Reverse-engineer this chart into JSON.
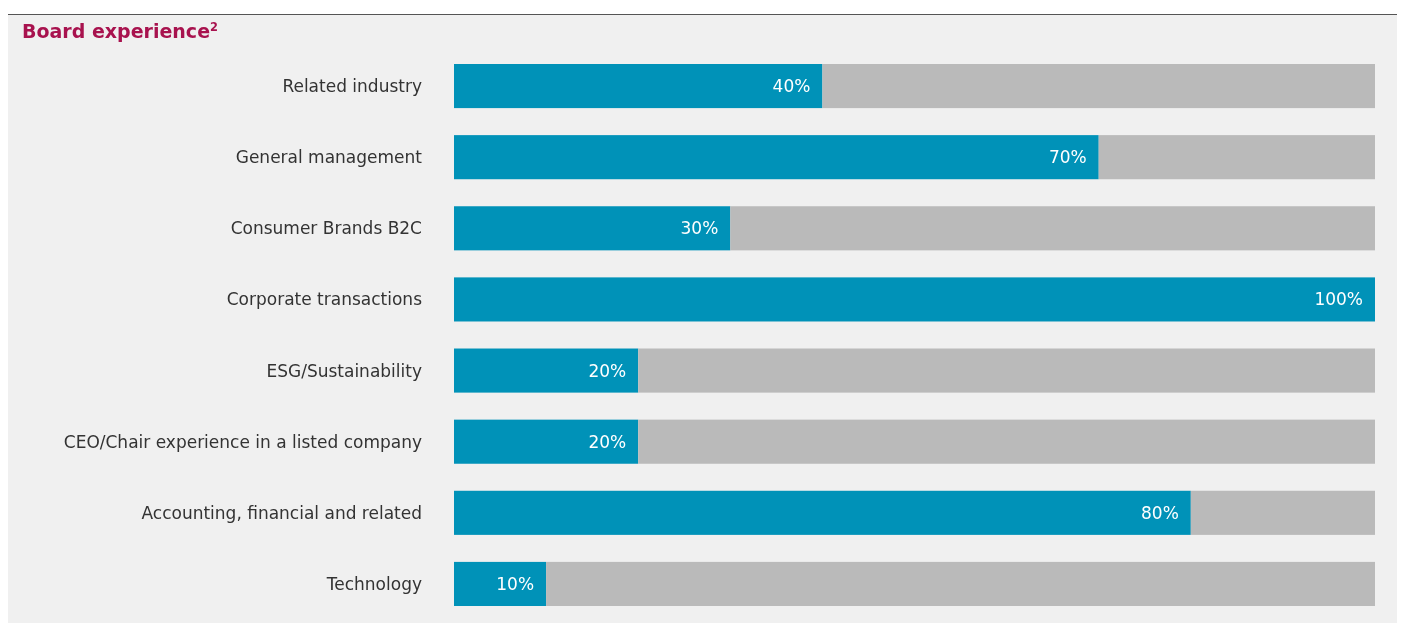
{
  "chart_data": {
    "type": "bar",
    "orientation": "horizontal",
    "stacked": true,
    "title": "Board experience$^{2}$",
    "categories": [
      "Related industry",
      "General management",
      "Consumer Brands B2C",
      "Corporate transactions",
      "ESG/Sustainability",
      "CEO/Chair experience in a listed company",
      "Accounting, financial and related",
      "Technology"
    ],
    "series": [
      {
        "color": "#0092b8",
        "values": [
          40,
          70,
          30,
          100,
          20,
          20,
          80,
          10
        ],
        "value_labels": [
          "40%",
          "70%",
          "30%",
          "100%",
          "20%",
          "20%",
          "80%",
          "10%"
        ]
      },
      {
        "color": "#bababa",
        "values": [
          60,
          30,
          70,
          0,
          80,
          80,
          20,
          90
        ]
      }
    ],
    "xlim": [
      0,
      100
    ],
    "tick_labels": "y"
  }
}
